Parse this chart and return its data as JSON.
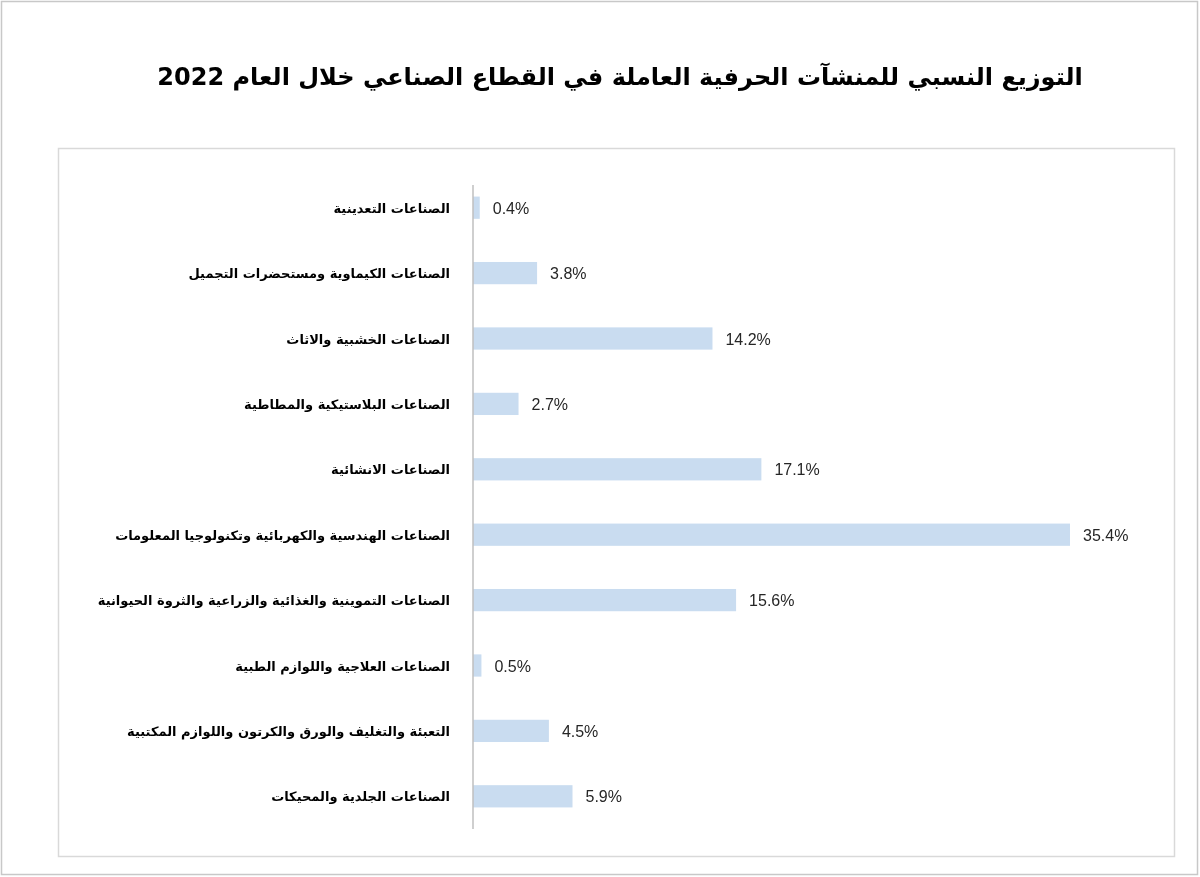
{
  "chart_data": {
    "type": "bar",
    "orientation": "horizontal",
    "title": "التوزيع النسبي للمنشآت الحرفية العاملة في القطاع الصناعي خلال العام 2022",
    "categories": [
      "الصناعات التعدينية",
      "الصناعات الكيماوية ومستحضرات التجميل",
      "الصناعات الخشبية والاثاث",
      "الصناعات البلاستيكية والمطاطية",
      "الصناعات الانشائية",
      "الصناعات الهندسية والكهربائية وتكنولوجيا المعلومات",
      "الصناعات التموينية والغذائية والزراعية والثروة الحيوانية",
      "الصناعات العلاجية واللوازم الطبية",
      "التعبئة والتغليف والورق والكرتون واللوازم المكتبية",
      "الصناعات الجلدية والمحيكات"
    ],
    "values": [
      0.4,
      3.8,
      14.2,
      2.7,
      17.1,
      35.4,
      15.6,
      0.5,
      4.5,
      5.9
    ],
    "value_labels": [
      "0.4%",
      "3.8%",
      "14.2%",
      "2.7%",
      "17.1%",
      "35.4%",
      "15.6%",
      "0.5%",
      "4.5%",
      "5.9%"
    ],
    "color": "#c9dcf0"
  }
}
